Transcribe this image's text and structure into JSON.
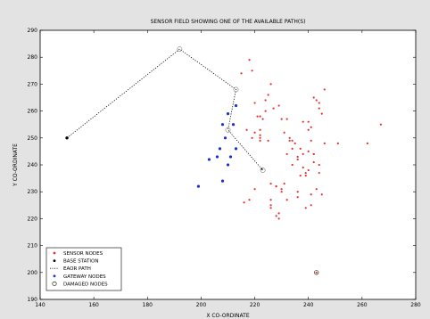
{
  "chart_data": {
    "type": "scatter",
    "title": "SENSOR FIELD SHOWING ONE OF THE AVAILABLE PATH(S)",
    "xlabel": "X CO-ORDINATE",
    "ylabel": "Y CO-ORDINATE",
    "xlim": [
      140,
      280
    ],
    "ylim": [
      190,
      290
    ],
    "xticks": [
      "140",
      "160",
      "180",
      "200",
      "220",
      "240",
      "260",
      "280"
    ],
    "yticks": [
      "190",
      "200",
      "210",
      "220",
      "230",
      "240",
      "250",
      "260",
      "270",
      "280",
      "290"
    ],
    "grid": false,
    "legend_position": "bottom-left",
    "legend": [
      {
        "label": "SENSOR NODES",
        "marker": "dot",
        "color": "#e53030"
      },
      {
        "label": "BASE STATION",
        "marker": "dot",
        "color": "#000000"
      },
      {
        "label": "EAOR PATH",
        "marker": "dotted-line",
        "color": "#000000"
      },
      {
        "label": "GATEWAY NODES",
        "marker": "dot",
        "color": "#1a2fd0"
      },
      {
        "label": "DAMAGED NODES",
        "marker": "circle",
        "color": "#000000"
      }
    ],
    "base_station": {
      "x": 150,
      "y": 250
    },
    "path": {
      "x": [
        150,
        192,
        213,
        210,
        223
      ],
      "y": [
        250,
        283,
        268,
        253,
        238
      ]
    },
    "gateway_nodes": {
      "x": [
        199,
        203,
        206,
        207,
        208,
        208,
        209,
        210,
        210,
        211,
        212,
        213,
        213
      ],
      "y": [
        232,
        242,
        243,
        246,
        255,
        234,
        250,
        240,
        259,
        243,
        255,
        262,
        246
      ]
    },
    "sensor_nodes": {
      "x": [
        218,
        219,
        215,
        220,
        225,
        222,
        226,
        224,
        227,
        229,
        230,
        231,
        232,
        233,
        234,
        233,
        235,
        236,
        238,
        240,
        242,
        244,
        246,
        251,
        262,
        267,
        241,
        243,
        220,
        226,
        232,
        236,
        239,
        244,
        245,
        236,
        239,
        241,
        226,
        228,
        216,
        218,
        220,
        222,
        222,
        238,
        240,
        241,
        240,
        243,
        246,
        242,
        244,
        245,
        244,
        221,
        223,
        224,
        217,
        219,
        222,
        225,
        222,
        226,
        228,
        230,
        230,
        231,
        234,
        236,
        232,
        234,
        237,
        241,
        242,
        242,
        240,
        239,
        238,
        237,
        226,
        228,
        229,
        229,
        243
      ],
      "y": [
        279,
        275,
        274,
        263,
        266,
        258,
        270,
        264,
        261,
        262,
        257,
        252,
        257,
        249,
        249,
        250,
        248,
        243,
        244,
        245,
        244,
        240,
        248,
        248,
        248,
        255,
        229,
        231,
        231,
        227,
        227,
        228,
        236,
        237,
        229,
        230,
        224,
        225,
        225,
        232,
        226,
        227,
        252,
        253,
        250,
        256,
        253,
        254,
        256,
        264,
        268,
        265,
        263,
        259,
        261,
        258,
        257,
        260,
        253,
        250,
        251,
        249,
        249,
        233,
        232,
        230,
        231,
        233,
        240,
        242,
        244,
        246,
        246,
        249,
        241,
        244,
        238,
        237,
        239,
        236,
        224,
        221,
        220,
        222,
        200
      ]
    },
    "damaged_nodes": {
      "x": [
        243
      ],
      "y": [
        200
      ]
    }
  }
}
